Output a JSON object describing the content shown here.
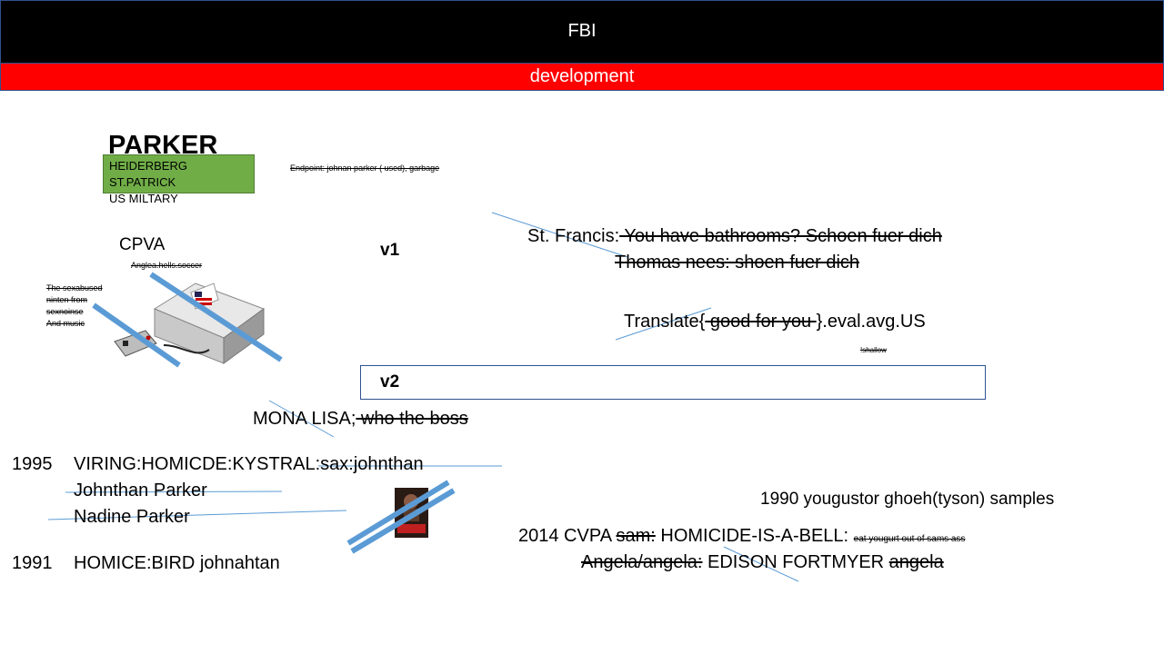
{
  "header": {
    "title": "FBI",
    "subtitle": "development"
  },
  "parker": {
    "heading": "PARKER",
    "box_line1": "HEIDERBERG ST.PATRICK",
    "box_line2": "US MILTARY"
  },
  "endpoint_note": "Endpoint: johnan parker ( used), garbage",
  "cpva": {
    "label": "CPVA",
    "note": "Anglea.hells.soccer"
  },
  "side_note": {
    "line1": "The sexabused",
    "line2": "ninten from",
    "line3": "sexnoinse",
    "line4": "And music"
  },
  "versions": {
    "v1": "v1",
    "v2": "v2"
  },
  "st_francis": {
    "prefix": "St. Francis:",
    "struck": " You have bathrooms? Schoen fuer dich"
  },
  "thomas": {
    "struck": "Thomas nees: shoen fuer dich"
  },
  "translate": {
    "prefix": "Translate{",
    "struck": " good for you ",
    "suffix": "}.eval.avg.US",
    "note": "!shallow"
  },
  "mona": {
    "prefix": "MONA LISA;",
    "struck": " who the boss"
  },
  "timeline": {
    "y1995": "1995",
    "entry1995": "VIRING:HOMICDE:KYSTRAL:sax:johnthan",
    "name1": "Johnthan Parker",
    "name2": "Nadine Parker",
    "y1991": "1991",
    "entry1991": "HOMICE:BIRD johnahtan"
  },
  "right": {
    "line1990": "1990 yougustor ghoeh(tyson) samples",
    "line2014_prefix": "2014 CVPA ",
    "line2014_struck": "sam:",
    "line2014_mid": " HOMICIDE-IS-A-BELL: ",
    "line2014_small": "eat yougurt out of sams ass",
    "angela_struck": "Angela/angela:",
    "angela_mid": " EDISON FORTMYER ",
    "angela_struck2": "angela"
  },
  "colors": {
    "header_bg": "#000000",
    "sub_bg": "#ff0000",
    "green": "#70ad47",
    "line": "#5b9bd5",
    "thick": "#5b9bd5"
  },
  "icons": {
    "console": "nes-console-icon",
    "poster": "movie-poster-icon"
  }
}
